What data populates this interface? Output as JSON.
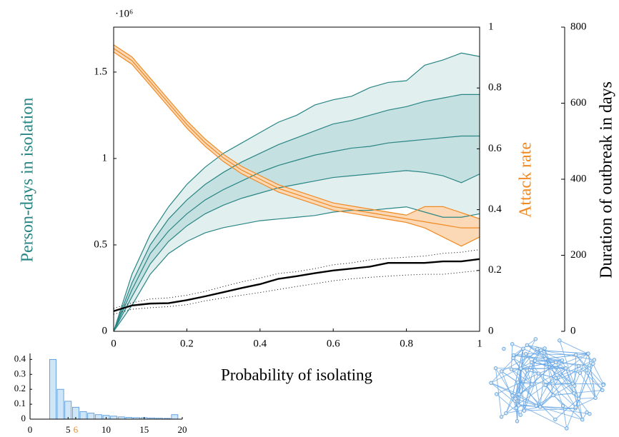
{
  "chart_data": [
    {
      "type": "line",
      "y_exponent": "·10⁶",
      "xlabel": "Probability of isolating",
      "ylabel": "Person-days in isolation",
      "ylabel_color": "#2a8585",
      "y2label": "Attack rate",
      "y2label_color": "#f08a24",
      "y3label": "Duration of outbreak in days",
      "y3label_color": "#000000",
      "x": [
        0,
        0.05,
        0.1,
        0.15,
        0.2,
        0.25,
        0.3,
        0.35,
        0.4,
        0.45,
        0.5,
        0.55,
        0.6,
        0.65,
        0.7,
        0.75,
        0.8,
        0.85,
        0.9,
        0.95,
        1
      ],
      "xlim": [
        0,
        1
      ],
      "xticks": [
        0,
        0.2,
        0.4,
        0.6,
        0.8,
        1
      ],
      "ylim": [
        0,
        1.76
      ],
      "yticks": [
        0,
        0.5,
        1,
        1.5
      ],
      "y2lim": [
        0,
        1
      ],
      "y2ticks": [
        0,
        0.2,
        0.4,
        0.6,
        0.8,
        1
      ],
      "y3lim": [
        0,
        800
      ],
      "y3ticks": [
        0,
        200,
        400,
        600,
        800
      ],
      "series": [
        {
          "axis": "y",
          "color": "#2a8585",
          "fill": "#e2efef",
          "fill_to": 4,
          "values": [
            0,
            0.33,
            0.56,
            0.72,
            0.85,
            0.95,
            1.03,
            1.09,
            1.15,
            1.21,
            1.25,
            1.31,
            1.34,
            1.36,
            1.41,
            1.44,
            1.45,
            1.54,
            1.57,
            1.61,
            1.59
          ]
        },
        {
          "axis": "y",
          "color": "#2a8585",
          "fill": "#c5e0e0",
          "fill_to": 3,
          "values": [
            0,
            0.28,
            0.5,
            0.65,
            0.76,
            0.85,
            0.92,
            0.98,
            1.03,
            1.08,
            1.12,
            1.16,
            1.2,
            1.22,
            1.25,
            1.28,
            1.3,
            1.33,
            1.35,
            1.37,
            1.37
          ]
        },
        {
          "axis": "y",
          "color": "#2a8585",
          "values": [
            0,
            0.24,
            0.45,
            0.58,
            0.68,
            0.76,
            0.82,
            0.87,
            0.92,
            0.96,
            0.99,
            1.02,
            1.04,
            1.06,
            1.07,
            1.09,
            1.1,
            1.11,
            1.12,
            1.13,
            1.13
          ]
        },
        {
          "axis": "y",
          "color": "#2a8585",
          "values": [
            0,
            0.2,
            0.39,
            0.52,
            0.61,
            0.68,
            0.73,
            0.77,
            0.8,
            0.83,
            0.85,
            0.87,
            0.89,
            0.9,
            0.91,
            0.92,
            0.93,
            0.92,
            0.9,
            0.86,
            0.91
          ]
        },
        {
          "axis": "y",
          "color": "#2a8585",
          "values": [
            0,
            0.15,
            0.33,
            0.45,
            0.52,
            0.57,
            0.6,
            0.62,
            0.64,
            0.65,
            0.66,
            0.67,
            0.69,
            0.7,
            0.7,
            0.71,
            0.72,
            0.69,
            0.66,
            0.66,
            0.68
          ]
        },
        {
          "axis": "y2",
          "color": "#f08a24",
          "fill": "#fbd9b6",
          "fill_to": 7,
          "values": [
            0.942,
            0.902,
            0.832,
            0.762,
            0.692,
            0.632,
            0.582,
            0.542,
            0.512,
            0.482,
            0.462,
            0.442,
            0.422,
            0.412,
            0.402,
            0.392,
            0.382,
            0.41,
            0.41,
            0.39,
            0.37
          ]
        },
        {
          "axis": "y2",
          "color": "#f08a24",
          "values": [
            0.93,
            0.89,
            0.82,
            0.75,
            0.68,
            0.62,
            0.57,
            0.53,
            0.5,
            0.47,
            0.45,
            0.43,
            0.41,
            0.4,
            0.39,
            0.38,
            0.37,
            0.36,
            0.35,
            0.34,
            0.34
          ]
        },
        {
          "axis": "y2",
          "color": "#f08a24",
          "values": [
            0.918,
            0.878,
            0.808,
            0.738,
            0.668,
            0.608,
            0.558,
            0.518,
            0.488,
            0.458,
            0.438,
            0.418,
            0.398,
            0.388,
            0.378,
            0.368,
            0.358,
            0.34,
            0.31,
            0.28,
            0.31
          ]
        },
        {
          "axis": "y3",
          "color": "#000000",
          "style": "dotted",
          "values": [
            60,
            75,
            85,
            88,
            95,
            105,
            118,
            130,
            140,
            152,
            157,
            165,
            175,
            180,
            188,
            192,
            195,
            198,
            205,
            208,
            215
          ]
        },
        {
          "axis": "y3",
          "color": "#000000",
          "style": "bold",
          "values": [
            53,
            68,
            73,
            74,
            82,
            92,
            103,
            114,
            124,
            138,
            145,
            153,
            160,
            165,
            170,
            180,
            180,
            180,
            184,
            184,
            190
          ]
        },
        {
          "axis": "y3",
          "color": "#000000",
          "style": "dotted",
          "values": [
            45,
            58,
            62,
            65,
            70,
            80,
            88,
            95,
            102,
            110,
            118,
            125,
            133,
            138,
            142,
            145,
            148,
            150,
            150,
            155,
            160
          ]
        }
      ]
    },
    {
      "type": "histogram",
      "bins": [
        2.5,
        3.5,
        4.5,
        5.5,
        6.5,
        7.5,
        8.5,
        9.5,
        10.5,
        11.5,
        12.5,
        13.5,
        14.5,
        15.5,
        16.5,
        17.5,
        18.5,
        19.5
      ],
      "values": [
        0.4,
        0.2,
        0.12,
        0.08,
        0.05,
        0.04,
        0.03,
        0.025,
        0.02,
        0.015,
        0.012,
        0.01,
        0.01,
        0.008,
        0.006,
        0.005,
        0.03
      ],
      "color": "#cfe6f8",
      "edge_color": "#4a90d9",
      "xlim": [
        0,
        20
      ],
      "xticks": [
        0,
        5,
        6,
        10,
        15,
        20
      ],
      "highlight_tick": 6,
      "highlight_color": "#f08a24",
      "ylim": [
        0,
        0.44
      ],
      "yticks": [
        0,
        0.1,
        0.2,
        0.3,
        0.4
      ]
    }
  ]
}
